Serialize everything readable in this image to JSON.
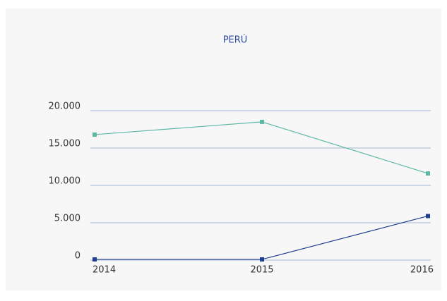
{
  "chart_data": {
    "type": "line",
    "title": "PERÚ",
    "categories": [
      "2014",
      "2015",
      "2016"
    ],
    "series": [
      {
        "color": "#5fb8a6",
        "values": [
          16800,
          18500,
          11600
        ]
      },
      {
        "color": "#1f3f8f",
        "values": [
          100,
          100,
          5900
        ]
      }
    ],
    "ylim": [
      0,
      20000
    ],
    "yticks": [
      0,
      {
        "value": 5000,
        "label": "5.000"
      },
      {
        "value": 10000,
        "label": "10.000"
      },
      {
        "value": 15000,
        "label": "15.000"
      },
      {
        "value": 20000,
        "label": "20.000"
      }
    ],
    "grid": true
  }
}
